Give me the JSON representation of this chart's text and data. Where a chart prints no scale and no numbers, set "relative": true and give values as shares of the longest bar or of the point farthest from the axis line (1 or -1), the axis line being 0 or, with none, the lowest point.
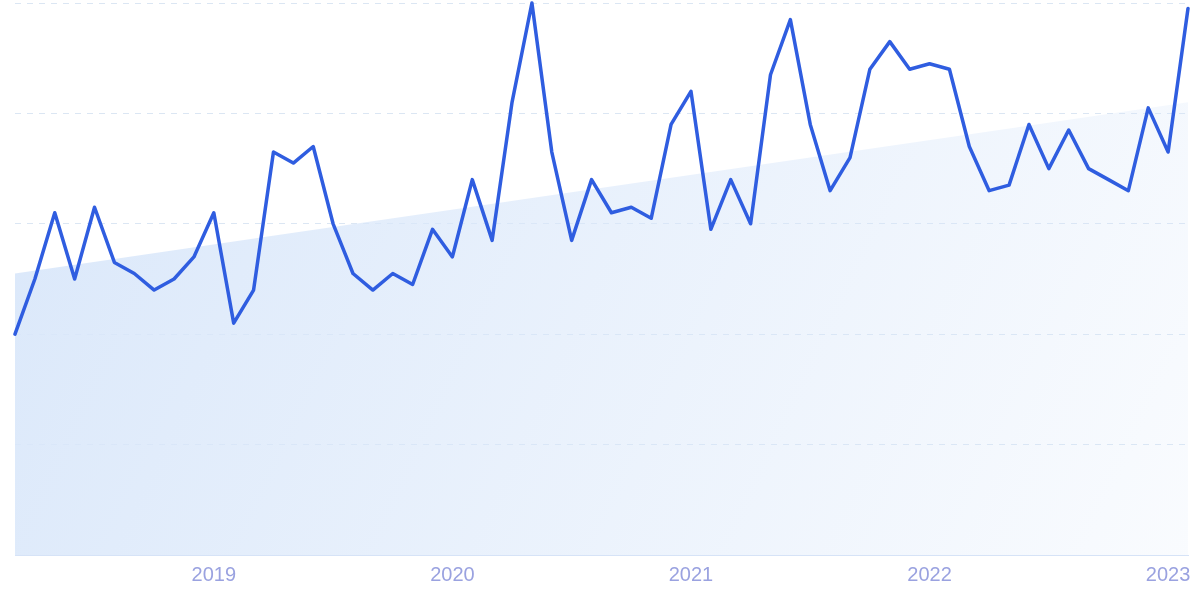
{
  "chart_data": {
    "type": "line",
    "relative": true,
    "grid": "y",
    "legend": false,
    "marker": "none",
    "line_style": "solid",
    "xlim": [
      "2018-03",
      "2023-02"
    ],
    "xticks": [
      {
        "value": "2019",
        "label": "2019"
      },
      {
        "value": "2020",
        "label": "2020"
      },
      {
        "value": "2021",
        "label": "2021"
      },
      {
        "value": "2022",
        "label": "2022"
      },
      {
        "value": "2023",
        "label": "2023"
      }
    ],
    "x": [
      "2018-03",
      "2018-04",
      "2018-05",
      "2018-06",
      "2018-07",
      "2018-08",
      "2018-09",
      "2018-10",
      "2018-11",
      "2018-12",
      "2019-01",
      "2019-02",
      "2019-03",
      "2019-04",
      "2019-05",
      "2019-06",
      "2019-07",
      "2019-08",
      "2019-09",
      "2019-10",
      "2019-11",
      "2019-12",
      "2020-01",
      "2020-02",
      "2020-03",
      "2020-04",
      "2020-05",
      "2020-06",
      "2020-07",
      "2020-08",
      "2020-09",
      "2020-10",
      "2020-11",
      "2020-12",
      "2021-01",
      "2021-02",
      "2021-03",
      "2021-04",
      "2021-05",
      "2021-06",
      "2021-07",
      "2021-08",
      "2021-09",
      "2021-10",
      "2021-11",
      "2021-12",
      "2022-01",
      "2022-02",
      "2022-03",
      "2022-04",
      "2022-05",
      "2022-06",
      "2022-07",
      "2022-08",
      "2022-09",
      "2022-10",
      "2022-11",
      "2022-12",
      "2023-01",
      "2023-02"
    ],
    "series": [
      {
        "type": "area",
        "color": "#d9e7fa",
        "x": [
          "2018-03",
          "2023-02"
        ],
        "values": [
          0.51,
          0.82
        ]
      },
      {
        "color": "#2f5de0",
        "values": [
          0.4,
          0.5,
          0.62,
          0.5,
          0.63,
          0.53,
          0.51,
          0.48,
          0.5,
          0.54,
          0.62,
          0.42,
          0.48,
          0.73,
          0.71,
          0.74,
          0.6,
          0.51,
          0.48,
          0.51,
          0.49,
          0.59,
          0.54,
          0.68,
          0.57,
          0.82,
          1,
          0.73,
          0.57,
          0.68,
          0.62,
          0.63,
          0.61,
          0.78,
          0.84,
          0.59,
          0.68,
          0.6,
          0.87,
          0.97,
          0.78,
          0.66,
          0.72,
          0.88,
          0.93,
          0.88,
          0.89,
          0.88,
          0.74,
          0.66,
          0.67,
          0.78,
          0.7,
          0.77,
          0.7,
          0.68,
          0.66,
          0.81,
          0.73,
          0.99
        ]
      }
    ]
  }
}
